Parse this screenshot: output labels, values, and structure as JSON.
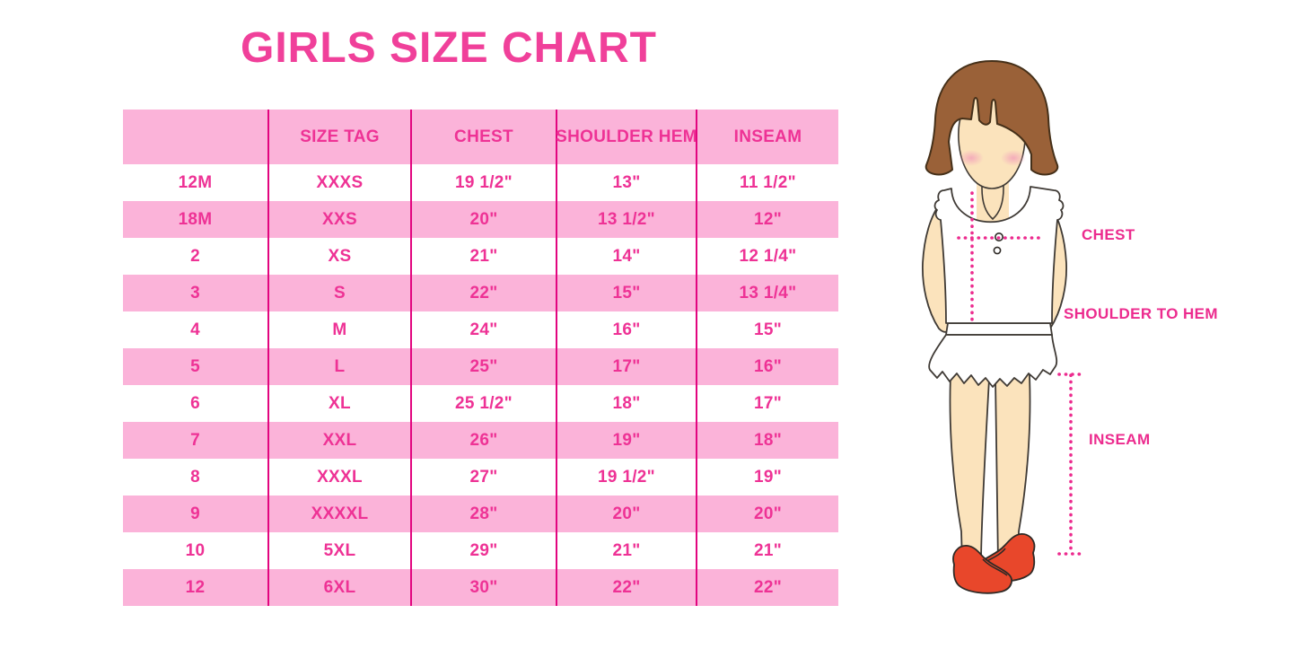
{
  "title": "GIRLS SIZE CHART",
  "table": {
    "columns": [
      "",
      "SIZE TAG",
      "CHEST",
      "SHOULDER HEM",
      "INSEAM"
    ],
    "rows": [
      [
        "12M",
        "XXXS",
        "19 1/2\"",
        "13\"",
        "11 1/2\""
      ],
      [
        "18M",
        "XXS",
        "20\"",
        "13 1/2\"",
        "12\""
      ],
      [
        "2",
        "XS",
        "21\"",
        "14\"",
        "12 1/4\""
      ],
      [
        "3",
        "S",
        "22\"",
        "15\"",
        "13 1/4\""
      ],
      [
        "4",
        "M",
        "24\"",
        "16\"",
        "15\""
      ],
      [
        "5",
        "L",
        "25\"",
        "17\"",
        "16\""
      ],
      [
        "6",
        "XL",
        "25 1/2\"",
        "18\"",
        "17\""
      ],
      [
        "7",
        "XXL",
        "26\"",
        "19\"",
        "18\""
      ],
      [
        "8",
        "XXXL",
        "27\"",
        "19 1/2\"",
        "19\""
      ],
      [
        "9",
        "XXXXL",
        "28\"",
        "20\"",
        "20\""
      ],
      [
        "10",
        "5XL",
        "29\"",
        "21\"",
        "21\""
      ],
      [
        "12",
        "6XL",
        "30\"",
        "22\"",
        "22\""
      ]
    ]
  },
  "figure": {
    "labels": {
      "chest": "CHEST",
      "shoulder_to_hem": "SHOULDER TO HEM",
      "inseam": "INSEAM"
    }
  },
  "colors": {
    "accent_pink_text": "#ee3295",
    "title_pink": "#f0409a",
    "row_light_pink": "#fbb3d9",
    "divider_magenta": "#e2057f",
    "measure_dot_pink": "#ec2b8e",
    "hair_brown": "#9a6138",
    "skin_tan": "#fbe3bc",
    "shoe_red": "#e8472b",
    "garment_white": "#ffffff"
  }
}
